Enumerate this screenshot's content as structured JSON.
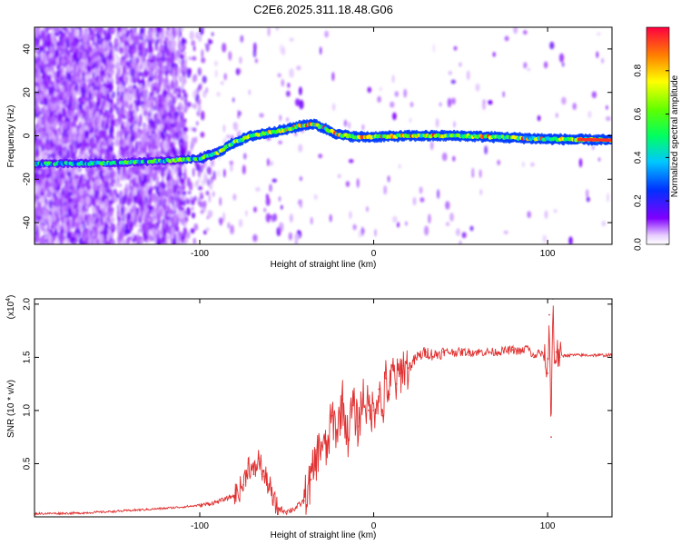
{
  "figure": {
    "title": "C2E6.2025.311.18.48.G06"
  },
  "chart_data": [
    {
      "type": "heatmap",
      "xlabel": "Height of straight line (km)",
      "ylabel": "Frequency (Hz)",
      "xlim": [
        -195,
        137
      ],
      "ylim": [
        -50,
        50
      ],
      "xticks": [
        -100,
        0,
        100
      ],
      "xtick_labels": [
        "-100",
        "0",
        "100"
      ],
      "yticks": [
        -40,
        -20,
        0,
        20,
        40
      ],
      "ytick_labels": [
        "-40",
        "-20",
        "0",
        "20",
        "40"
      ],
      "colorbar": {
        "label": "Normalized spectral amplitude",
        "range": [
          0,
          1
        ],
        "ticks": [
          0,
          0.2,
          0.4,
          0.6,
          0.8
        ],
        "tick_labels": [
          "0.0",
          "0.2",
          "0.4",
          "0.6",
          "0.8"
        ]
      },
      "ridge": {
        "x": [
          -195,
          -150,
          -120,
          -100,
          -90,
          -80,
          -70,
          -60,
          -50,
          -40,
          -35,
          -30,
          -20,
          -10,
          0,
          20,
          50,
          100,
          137
        ],
        "y": [
          -13,
          -12.5,
          -11.5,
          -10.5,
          -8,
          -3,
          0,
          1.5,
          3,
          5,
          5.5,
          4,
          0.5,
          -0.5,
          -0.5,
          0,
          0,
          -1.5,
          -2
        ]
      }
    },
    {
      "type": "line",
      "xlabel": "Height of straight line (km)",
      "ylabel": "SNR (10 * v/v)",
      "scale_label": "(x10",
      "scale_exp": "4",
      "xlim": [
        -195,
        137
      ],
      "ylim": [
        0,
        2.05
      ],
      "xticks": [
        -100,
        0,
        100
      ],
      "xtick_labels": [
        "-100",
        "0",
        "100"
      ],
      "yticks": [
        0.5,
        1.0,
        1.5,
        2.0
      ],
      "ytick_labels": [
        "0.5",
        "1.0",
        "1.5",
        "2.0"
      ],
      "series": [
        {
          "name": "SNR",
          "color": "#e03030",
          "x": [
            -195,
            -170,
            -150,
            -140,
            -120,
            -105,
            -95,
            -90,
            -80,
            -75,
            -72,
            -69,
            -66,
            -63,
            -60,
            -58,
            -55,
            -50,
            -45,
            -40,
            -36,
            -33,
            -30,
            -27,
            -24,
            -21,
            -18,
            -15,
            -12,
            -9,
            -6,
            -3,
            0,
            3,
            5,
            7,
            9,
            11,
            13,
            15,
            17,
            20,
            25,
            30,
            35,
            40,
            50,
            60,
            70,
            80,
            85,
            88,
            92,
            95,
            98,
            100,
            101,
            102,
            103,
            104,
            105,
            107,
            110,
            120,
            130,
            137
          ],
          "y": [
            0.03,
            0.035,
            0.05,
            0.06,
            0.08,
            0.1,
            0.12,
            0.14,
            0.2,
            0.3,
            0.5,
            0.4,
            0.55,
            0.38,
            0.3,
            0.15,
            0.08,
            0.05,
            0.08,
            0.15,
            0.35,
            0.55,
            0.7,
            0.6,
            0.95,
            0.8,
            1.1,
            0.75,
            1.05,
            0.85,
            1.15,
            1.0,
            1.0,
            1.2,
            0.95,
            1.3,
            1.15,
            1.38,
            1.25,
            1.35,
            1.42,
            1.4,
            1.5,
            1.55,
            1.52,
            1.55,
            1.55,
            1.55,
            1.55,
            1.57,
            1.55,
            1.6,
            1.5,
            1.55,
            1.5,
            1.35,
            1.9,
            0.75,
            2.05,
            1.45,
            1.55,
            1.5,
            1.52,
            1.52,
            1.52,
            1.52
          ]
        }
      ]
    }
  ]
}
